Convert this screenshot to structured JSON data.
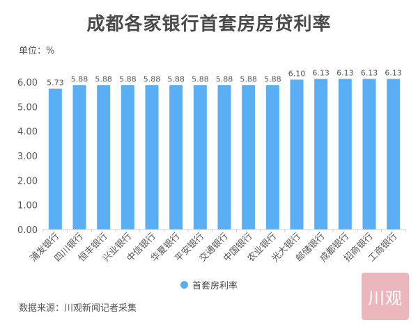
{
  "title": "成都各家银行首套房房贷利率",
  "unit_label": "单位：%",
  "source": "数据来源：川观新闻记者采集",
  "watermark": "川观",
  "colors": {
    "bar": "#5aaef3",
    "axis": "#cfcfcf",
    "text": "#555555"
  },
  "chart_data": {
    "type": "bar",
    "title": "成都各家银行首套房房贷利率",
    "ylabel": "单位：%",
    "xlabel": "",
    "categories": [
      "浦发银行",
      "四川银行",
      "恒丰银行",
      "兴业银行",
      "中信银行",
      "华夏银行",
      "平安银行",
      "交通银行",
      "中国银行",
      "农业银行",
      "光大银行",
      "邮储银行",
      "成都银行",
      "招商银行",
      "工商银行"
    ],
    "series": [
      {
        "name": "首套房利率",
        "values": [
          5.73,
          5.88,
          5.88,
          5.88,
          5.88,
          5.88,
          5.88,
          5.88,
          5.88,
          5.88,
          6.1,
          6.13,
          6.13,
          6.13,
          6.13
        ],
        "labels": [
          "5.73",
          "5.88",
          "5.88",
          "5.88",
          "5.88",
          "5.88",
          "5.88",
          "5.88",
          "5.88",
          "5.88",
          "6.10",
          "6.13",
          "6.13",
          "6.13",
          "6.13"
        ]
      }
    ],
    "ylim": [
      0,
      6
    ],
    "yticks": [
      "0.00",
      "1.00",
      "2.00",
      "3.00",
      "4.00",
      "5.00",
      "6.00"
    ],
    "grid": false,
    "legend_position": "bottom"
  }
}
